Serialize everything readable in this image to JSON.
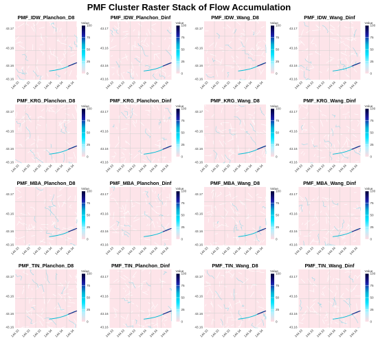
{
  "title": "PMF Cluster Raster Stack of Flow Accumulation",
  "chart_data": {
    "type": "heatmap",
    "title": "PMF Cluster Raster Stack of Flow Accumulation",
    "panels": [
      "PMF_IDW_Planchon_D8",
      "PMF_IDW_Planchon_Dinf",
      "PMF_IDW_Wang_D8",
      "PMF_IDW_Wang_Dinf",
      "PMF_KRG_Planchon_D8",
      "PMF_KRG_Planchon_Dinf",
      "PMF_KRG_Wang_D8",
      "PMF_KRG_Wang_Dinf",
      "PMF_MBA_Planchon_D8",
      "PMF_MBA_Planchon_Dinf",
      "PMF_MBA_Wang_D8",
      "PMF_MBA_Wang_Dinf",
      "PMF_TIN_Planchon_D8",
      "PMF_TIN_Planchon_Dinf",
      "PMF_TIN_Wang_D8",
      "PMF_TIN_Wang_Dinf"
    ],
    "y_ticks": [
      "43.17",
      "43.16",
      "43.16",
      "43.16"
    ],
    "x_ticks": [
      "144.33",
      "144.33",
      "144.33",
      "144.34",
      "144.34",
      "144.34"
    ],
    "legend": {
      "title": "Value",
      "ticks": [
        0,
        25,
        50,
        75,
        100
      ],
      "range": [
        0,
        100
      ],
      "colors": [
        "#ffd9e0",
        "#b3f2ff",
        "#00e5ff",
        "#00b3d6",
        "#1a1aa6",
        "#000033"
      ]
    },
    "background_color": "#fde4e9",
    "channel_color": "#7fd8e8",
    "grid": true
  }
}
